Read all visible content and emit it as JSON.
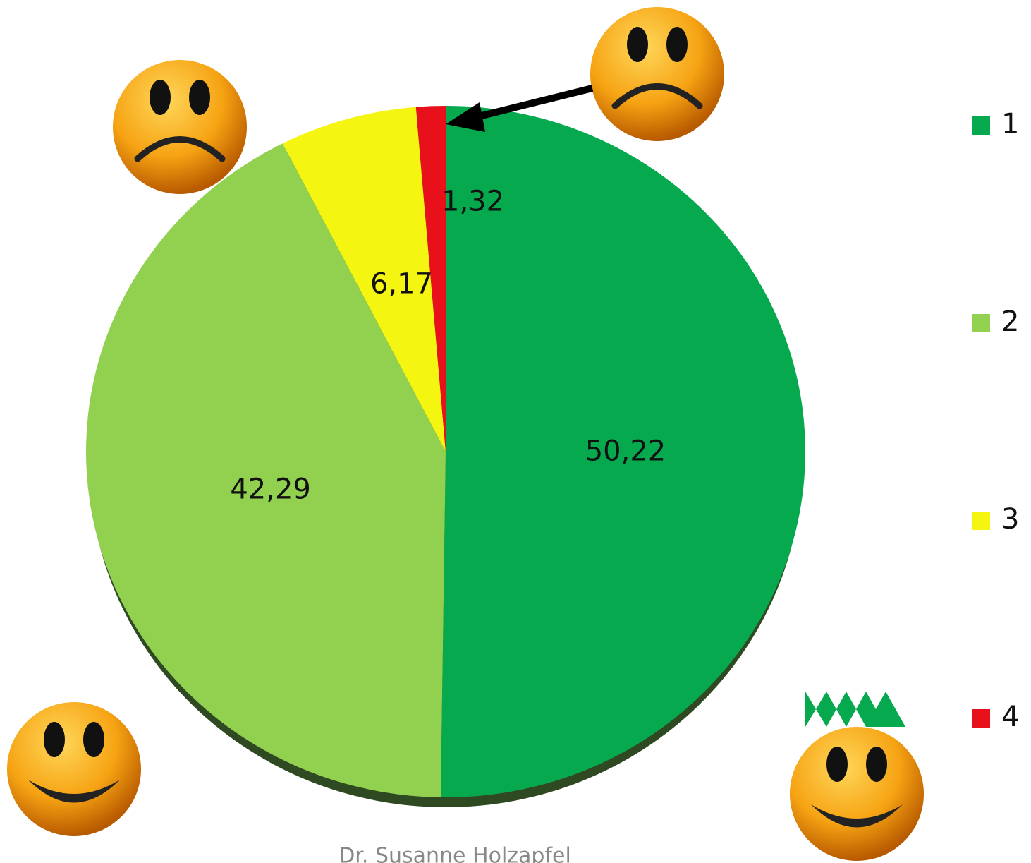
{
  "chart_data": {
    "type": "pie",
    "categories": [
      "1",
      "2",
      "3",
      "4"
    ],
    "values": [
      50.22,
      42.29,
      6.17,
      1.32
    ],
    "value_labels": [
      "50,22",
      "42,29",
      "6,17",
      "1,32"
    ],
    "colors": [
      "#07a94e",
      "#92d050",
      "#f5f512",
      "#e8101a"
    ],
    "legend": "right",
    "footer": "Dr. Susanne Holzapfel"
  }
}
